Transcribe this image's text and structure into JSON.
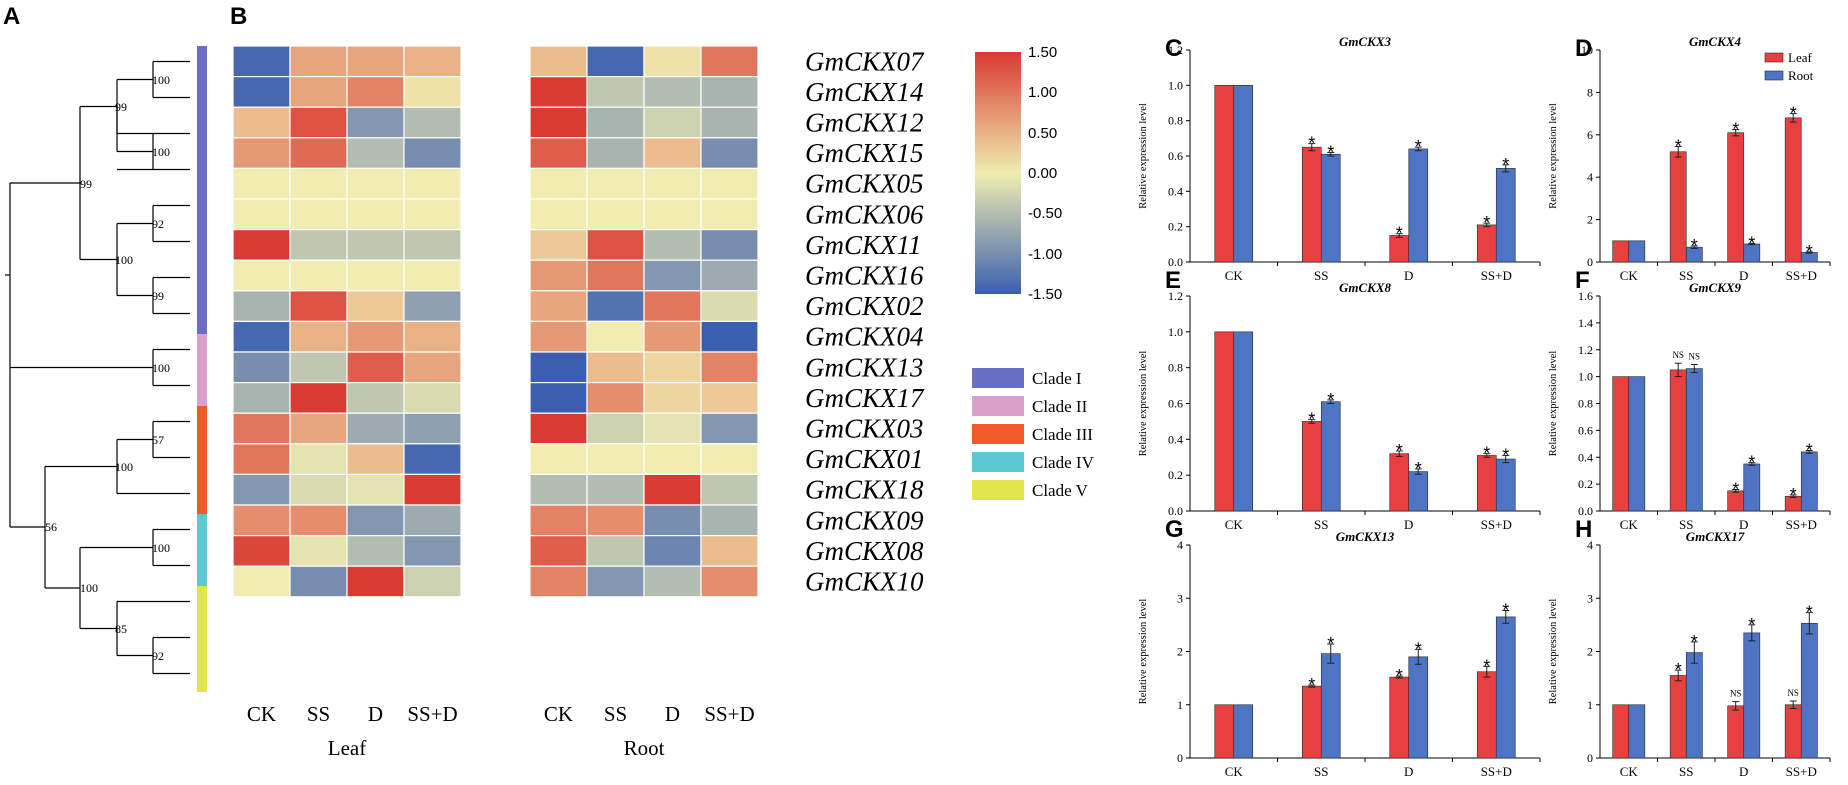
{
  "panel_labels": [
    "A",
    "B",
    "C",
    "D",
    "E",
    "F",
    "G",
    "H"
  ],
  "tree": {
    "bootstrap": [
      "100",
      "99",
      "100",
      "99",
      "92",
      "100",
      "99",
      "100",
      "57",
      "100",
      "56",
      "100",
      "100",
      "85",
      "92"
    ]
  },
  "clades": [
    {
      "name": "Clade I",
      "color": "#6A6FC4"
    },
    {
      "name": "Clade II",
      "color": "#D9A0CC"
    },
    {
      "name": "Clade III",
      "color": "#F05A28"
    },
    {
      "name": "Clade IV",
      "color": "#5BC8D4"
    },
    {
      "name": "Clade V",
      "color": "#E2E44A"
    }
  ],
  "colorbar": {
    "max_label": "1.50",
    "labels": [
      "1.50",
      "1.00",
      "0.50",
      "0.00",
      "-0.50",
      "-1.00",
      "-1.50"
    ],
    "low_color": "#3A5FB0",
    "mid_color": "#F1EDB0",
    "high_color": "#D93A32"
  },
  "chart_data": [
    {
      "type": "heatmap",
      "title": "",
      "genes": [
        "GmCKX07",
        "GmCKX14",
        "GmCKX12",
        "GmCKX15",
        "GmCKX05",
        "GmCKX06",
        "GmCKX11",
        "GmCKX16",
        "GmCKX02",
        "GmCKX04",
        "GmCKX13",
        "GmCKX17",
        "GmCKX03",
        "GmCKX01",
        "GmCKX18",
        "GmCKX09",
        "GmCKX08",
        "GmCKX10"
      ],
      "columns": [
        "CK",
        "SS",
        "D",
        "SS+D"
      ],
      "groups": [
        "Leaf",
        "Root"
      ],
      "range": [
        -1.5,
        1.5
      ],
      "leaf": [
        [
          -1.4,
          0.6,
          0.6,
          0.5
        ],
        [
          -1.4,
          0.6,
          0.9,
          0.1
        ],
        [
          0.4,
          1.3,
          -0.9,
          -0.5
        ],
        [
          0.7,
          1.1,
          -0.5,
          -1.0
        ],
        [
          0,
          0,
          0,
          0
        ],
        [
          0,
          0,
          0,
          0
        ],
        [
          1.5,
          -0.4,
          -0.4,
          -0.4
        ],
        [
          0,
          0,
          0,
          0
        ],
        [
          -0.6,
          1.3,
          0.3,
          -0.8
        ],
        [
          -1.4,
          0.5,
          0.7,
          0.5
        ],
        [
          -1.0,
          -0.4,
          1.2,
          0.6
        ],
        [
          -0.6,
          1.5,
          -0.4,
          -0.2
        ],
        [
          1.0,
          0.6,
          -0.7,
          -0.8
        ],
        [
          1.0,
          -0.1,
          0.4,
          -1.4
        ],
        [
          -0.9,
          -0.2,
          -0.1,
          1.5
        ],
        [
          0.8,
          0.8,
          -0.9,
          -0.7
        ],
        [
          1.4,
          -0.1,
          -0.5,
          -0.9
        ],
        [
          0,
          -1.0,
          1.5,
          -0.3
        ]
      ],
      "root": [
        [
          0.4,
          -1.4,
          0.1,
          1.0
        ],
        [
          1.5,
          -0.4,
          -0.5,
          -0.6
        ],
        [
          1.5,
          -0.6,
          -0.3,
          -0.6
        ],
        [
          1.2,
          -0.6,
          0.4,
          -1.0
        ],
        [
          0,
          0,
          0,
          0
        ],
        [
          0,
          0,
          0,
          0
        ],
        [
          0.3,
          1.3,
          -0.5,
          -1.0
        ],
        [
          0.7,
          1.0,
          -0.9,
          -0.7
        ],
        [
          0.6,
          -1.3,
          1.0,
          -0.2
        ],
        [
          0.7,
          0,
          0.7,
          -1.5
        ],
        [
          -1.5,
          0.4,
          0.2,
          0.9
        ],
        [
          -1.5,
          0.8,
          0.2,
          0.3
        ],
        [
          1.5,
          -0.3,
          -0.1,
          -0.9
        ],
        [
          0,
          0,
          0,
          0
        ],
        [
          -0.5,
          -0.5,
          1.5,
          -0.4
        ],
        [
          0.9,
          0.8,
          -1.0,
          -0.6
        ],
        [
          1.2,
          -0.4,
          -1.1,
          0.4
        ],
        [
          0.9,
          -0.9,
          -0.5,
          0.8
        ]
      ]
    },
    {
      "type": "bar",
      "title": "GmCKX3",
      "categories": [
        "CK",
        "SS",
        "D",
        "SS+D"
      ],
      "ylabel": "Relative expression level",
      "ylim": [
        0,
        1.2
      ],
      "yticks": [
        "0.0",
        "0.2",
        "0.4",
        "0.6",
        "0.8",
        "1.0",
        "1.2"
      ],
      "series": [
        {
          "name": "Leaf",
          "color": "#E84040",
          "values": [
            1.0,
            0.65,
            0.15,
            0.21
          ],
          "errors": [
            0,
            0.02,
            0.01,
            0.01
          ]
        },
        {
          "name": "Root",
          "color": "#4E74C4",
          "values": [
            1.0,
            0.61,
            0.64,
            0.53
          ],
          "errors": [
            0,
            0.01,
            0.01,
            0.02
          ]
        }
      ],
      "marks": [
        [
          "",
          "*",
          "*",
          "*"
        ],
        [
          "",
          "*",
          "*",
          "*"
        ]
      ]
    },
    {
      "type": "bar",
      "title": "GmCKX4",
      "categories": [
        "CK",
        "SS",
        "D",
        "SS+D"
      ],
      "ylabel": "Relative expression level",
      "ylim": [
        0,
        10
      ],
      "yticks": [
        "0",
        "2",
        "4",
        "6",
        "8",
        "10"
      ],
      "legend": [
        "Leaf",
        "Root"
      ],
      "series": [
        {
          "name": "Leaf",
          "color": "#E84040",
          "values": [
            1.0,
            5.2,
            6.1,
            6.8
          ],
          "errors": [
            0,
            0.25,
            0.15,
            0.2
          ]
        },
        {
          "name": "Root",
          "color": "#4E74C4",
          "values": [
            1.0,
            0.7,
            0.85,
            0.45
          ],
          "errors": [
            0,
            0.06,
            0.03,
            0.03
          ]
        }
      ],
      "marks": [
        [
          "",
          "*",
          "*",
          "*"
        ],
        [
          "",
          "*",
          "*",
          "*"
        ]
      ]
    },
    {
      "type": "bar",
      "title": "GmCKX8",
      "categories": [
        "CK",
        "SS",
        "D",
        "SS+D"
      ],
      "ylabel": "Relative expression level",
      "ylim": [
        0,
        1.2
      ],
      "yticks": [
        "0.0",
        "0.2",
        "0.4",
        "0.6",
        "0.8",
        "1.0",
        "1.2"
      ],
      "series": [
        {
          "name": "Leaf",
          "color": "#E84040",
          "values": [
            1.0,
            0.5,
            0.32,
            0.31
          ],
          "errors": [
            0,
            0.01,
            0.015,
            0.01
          ]
        },
        {
          "name": "Root",
          "color": "#4E74C4",
          "values": [
            1.0,
            0.61,
            0.22,
            0.29
          ],
          "errors": [
            0,
            0.01,
            0.015,
            0.02
          ]
        }
      ],
      "marks": [
        [
          "",
          "*",
          "*",
          "*"
        ],
        [
          "",
          "*",
          "*",
          "*"
        ]
      ]
    },
    {
      "type": "bar",
      "title": "GmCKX9",
      "categories": [
        "CK",
        "SS",
        "D",
        "SS+D"
      ],
      "ylabel": "Relative expression level",
      "ylim": [
        0,
        1.6
      ],
      "yticks": [
        "0.0",
        "0.2",
        "0.4",
        "0.6",
        "0.8",
        "1.0",
        "1.2",
        "1.4",
        "1.6"
      ],
      "series": [
        {
          "name": "Leaf",
          "color": "#E84040",
          "values": [
            1.0,
            1.05,
            0.15,
            0.11
          ],
          "errors": [
            0,
            0.05,
            0.01,
            0.01
          ]
        },
        {
          "name": "Root",
          "color": "#4E74C4",
          "values": [
            1.0,
            1.06,
            0.35,
            0.44
          ],
          "errors": [
            0,
            0.03,
            0.01,
            0.01
          ]
        }
      ],
      "marks": [
        [
          "",
          "NS",
          "*",
          "*"
        ],
        [
          "",
          "NS",
          "*",
          "*"
        ]
      ]
    },
    {
      "type": "bar",
      "title": "GmCKX13",
      "categories": [
        "CK",
        "SS",
        "D",
        "SS+D"
      ],
      "ylabel": "Relative expression level",
      "ylim": [
        0,
        4
      ],
      "yticks": [
        "0",
        "1",
        "2",
        "3",
        "4"
      ],
      "series": [
        {
          "name": "Leaf",
          "color": "#E84040",
          "values": [
            1.0,
            1.35,
            1.52,
            1.62
          ],
          "errors": [
            0,
            0.02,
            0.02,
            0.1
          ]
        },
        {
          "name": "Root",
          "color": "#4E74C4",
          "values": [
            1.0,
            1.96,
            1.9,
            2.65
          ],
          "errors": [
            0,
            0.18,
            0.14,
            0.12
          ]
        }
      ],
      "marks": [
        [
          "",
          "*",
          "*",
          "*"
        ],
        [
          "",
          "*",
          "*",
          "*"
        ]
      ]
    },
    {
      "type": "bar",
      "title": "GmCKX17",
      "categories": [
        "CK",
        "SS",
        "D",
        "SS+D"
      ],
      "ylabel": "Relative expression level",
      "ylim": [
        0,
        4
      ],
      "yticks": [
        "0",
        "1",
        "2",
        "3",
        "4"
      ],
      "series": [
        {
          "name": "Leaf",
          "color": "#E84040",
          "values": [
            1.0,
            1.55,
            0.98,
            1.0
          ],
          "errors": [
            0,
            0.1,
            0.08,
            0.07
          ]
        },
        {
          "name": "Root",
          "color": "#4E74C4",
          "values": [
            1.0,
            1.98,
            2.35,
            2.53
          ],
          "errors": [
            0,
            0.2,
            0.15,
            0.2
          ]
        }
      ],
      "marks": [
        [
          "",
          "*",
          "NS",
          "NS"
        ],
        [
          "",
          "*",
          "*",
          "*"
        ]
      ]
    }
  ]
}
